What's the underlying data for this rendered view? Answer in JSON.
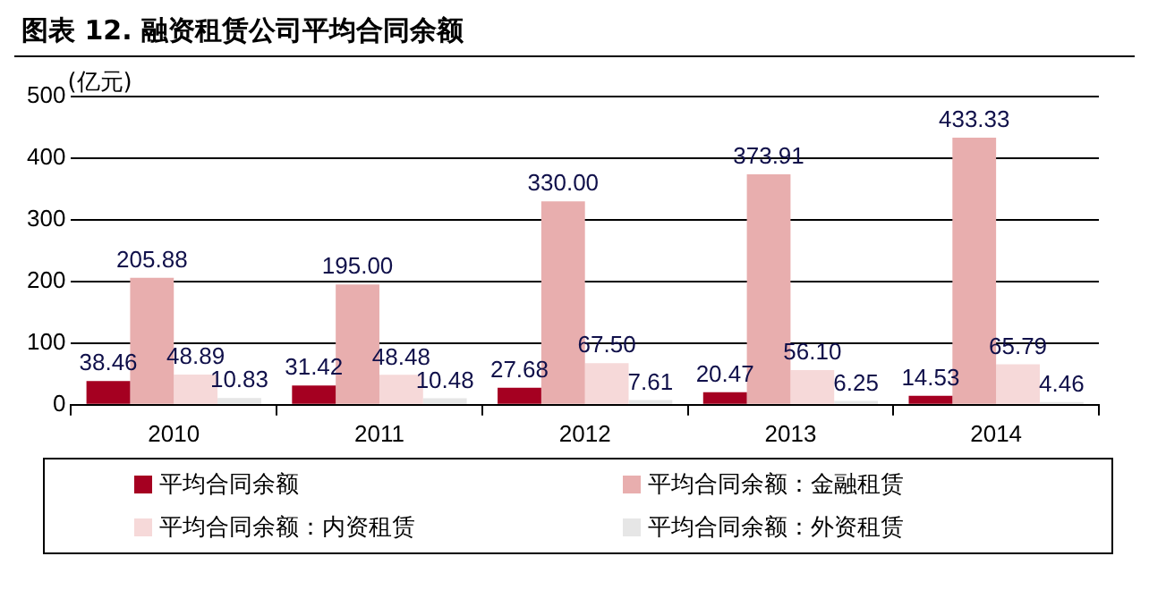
{
  "chart_data": {
    "type": "bar",
    "title": "图表 12. 融资租赁公司平均合同余额",
    "ylabel": "(亿元)",
    "categories": [
      "2010",
      "2011",
      "2012",
      "2013",
      "2014"
    ],
    "series": [
      {
        "name": "平均合同余额",
        "color": "#a50021",
        "values": [
          38.46,
          31.42,
          27.68,
          20.47,
          14.53
        ],
        "value_labels": [
          "38.46",
          "31.42",
          "27.68",
          "20.47",
          "14.53"
        ]
      },
      {
        "name": "平均合同余额：金融租赁",
        "color": "#e8aeae",
        "values": [
          205.88,
          195.0,
          330.0,
          373.91,
          433.33
        ],
        "value_labels": [
          "205.88",
          "195.00",
          "330.00",
          "373.91",
          "433.33"
        ]
      },
      {
        "name": "平均合同余额：内资租赁",
        "color": "#f6d9d9",
        "values": [
          48.89,
          48.48,
          67.5,
          56.1,
          65.79
        ],
        "value_labels": [
          "48.89",
          "48.48",
          "67.50",
          "56.10",
          "65.79"
        ]
      },
      {
        "name": "平均合同余额：外资租赁",
        "color": "#e6e6e6",
        "values": [
          10.83,
          10.48,
          7.61,
          6.25,
          4.46
        ],
        "value_labels": [
          "10.83",
          "10.48",
          "7.61",
          "6.25",
          "4.46"
        ]
      }
    ],
    "ylim": [
      0,
      500
    ],
    "yticks": [
      0,
      100,
      200,
      300,
      400,
      500
    ],
    "grid": "y",
    "legend": "bottom"
  }
}
